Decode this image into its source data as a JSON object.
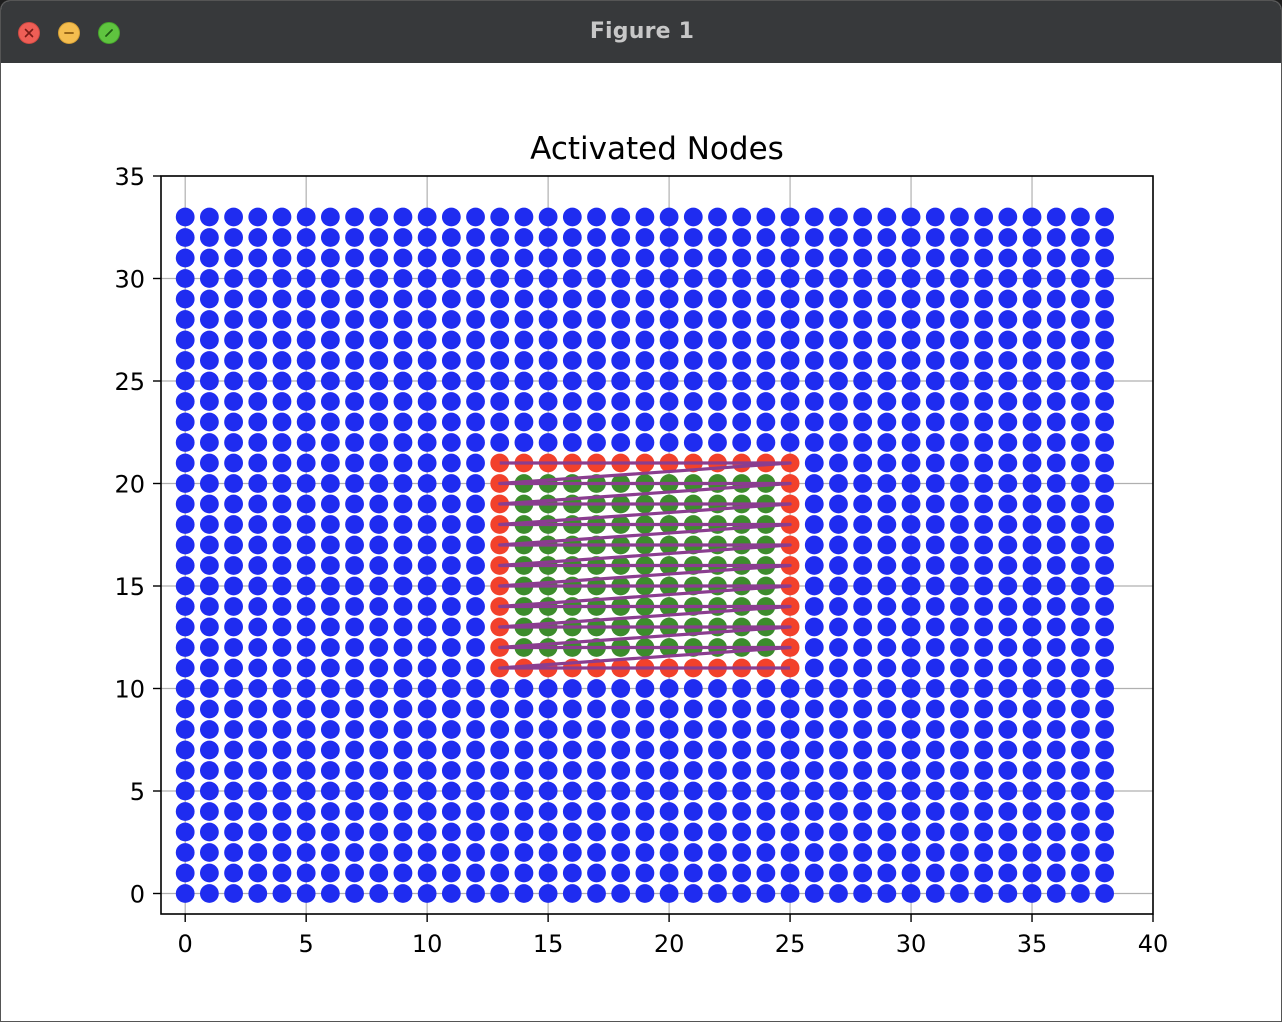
{
  "window": {
    "title": "Figure 1",
    "buttons": {
      "close": "close-icon",
      "minimize": "minimize-icon",
      "maximize": "fullscreen-icon"
    }
  },
  "chart_data": {
    "type": "scatter",
    "title": "Activated Nodes",
    "xlabel": "",
    "ylabel": "",
    "xlim": [
      -1,
      40
    ],
    "ylim": [
      -1,
      35
    ],
    "xticks": [
      0,
      5,
      10,
      15,
      20,
      25,
      30,
      35,
      40
    ],
    "yticks": [
      0,
      5,
      10,
      15,
      20,
      25,
      30,
      35
    ],
    "grid": true,
    "legend": "none",
    "grid_nodes": {
      "x_range": [
        0,
        38
      ],
      "y_range": [
        0,
        33
      ],
      "step": 1,
      "color": "#1f2cf0"
    },
    "activated_region": {
      "x_range": [
        13,
        25
      ],
      "y_range": [
        11,
        21
      ],
      "border_color": "#f2412b",
      "interior_color": "#3c8c2c"
    },
    "path": {
      "color": "#8a3d8f",
      "points": [
        [
          13,
          21
        ],
        [
          25,
          21
        ],
        [
          13,
          20
        ],
        [
          25,
          20
        ],
        [
          13,
          19
        ],
        [
          25,
          19
        ],
        [
          13,
          18
        ],
        [
          25,
          18
        ],
        [
          13,
          17
        ],
        [
          25,
          17
        ],
        [
          13,
          16
        ],
        [
          25,
          16
        ],
        [
          13,
          15
        ],
        [
          25,
          15
        ],
        [
          13,
          14
        ],
        [
          25,
          14
        ],
        [
          13,
          13
        ],
        [
          25,
          13
        ],
        [
          13,
          12
        ],
        [
          25,
          12
        ],
        [
          13,
          11
        ],
        [
          25,
          11
        ]
      ]
    }
  }
}
